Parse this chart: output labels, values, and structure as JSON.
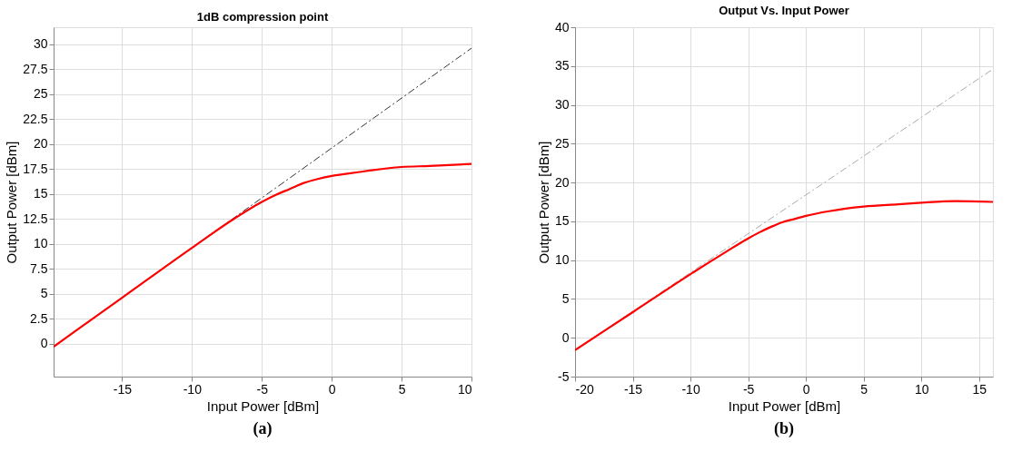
{
  "chart_data": [
    {
      "type": "line",
      "title": "1dB compression point",
      "xlabel": "Input Power [dBm]",
      "ylabel": "Output Power [dBm]",
      "xlim": [
        -19.9,
        10
      ],
      "ylim": [
        -3.3,
        31.7
      ],
      "xticks": [
        -15,
        -10,
        -5,
        0,
        5,
        10
      ],
      "yticks": [
        0,
        2.5,
        5,
        7.5,
        10,
        12.5,
        15,
        17.5,
        20,
        22.5,
        25,
        27.5,
        30
      ],
      "grid": true,
      "annotations": [
        "(a)"
      ],
      "series": [
        {
          "color": "#333333",
          "line_style": "dashed",
          "x": [
            -19.9,
            10
          ],
          "values": [
            -0.3,
            29.6
          ]
        },
        {
          "color": "#ff0000",
          "line_style": "solid",
          "x": [
            -19.9,
            -15,
            -10,
            -7,
            -5,
            -4,
            -3,
            -2,
            -1,
            0,
            1,
            2,
            3,
            5,
            7,
            10
          ],
          "values": [
            -0.3,
            4.6,
            9.6,
            12.5,
            14.2,
            14.9,
            15.5,
            16.1,
            16.5,
            16.8,
            17.0,
            17.2,
            17.4,
            17.7,
            17.8,
            18.0
          ]
        }
      ]
    },
    {
      "type": "line",
      "title": "Output Vs. Input Power",
      "xlabel": "Input Power [dBm]",
      "ylabel": "Output Power [dBm]",
      "xlim": [
        -20,
        16.2
      ],
      "ylim": [
        -5,
        40
      ],
      "xticks": [
        -20,
        -15,
        -10,
        -5,
        0,
        5,
        10,
        15
      ],
      "yticks": [
        -5,
        0,
        5,
        10,
        15,
        20,
        25,
        30,
        35,
        40
      ],
      "grid": true,
      "annotations": [
        "(b)"
      ],
      "series": [
        {
          "color": "#aaaaaa",
          "line_style": "dashed",
          "x": [
            -20,
            16.2
          ],
          "values": [
            -1.6,
            34.6
          ]
        },
        {
          "color": "#ff0000",
          "line_style": "solid",
          "x": [
            -20,
            -15,
            -10,
            -7,
            -5,
            -4,
            -3,
            -2,
            -1,
            0,
            2,
            5,
            8,
            10,
            13,
            16.2
          ],
          "values": [
            -1.6,
            3.3,
            8.2,
            11.0,
            12.8,
            13.6,
            14.3,
            14.9,
            15.3,
            15.7,
            16.3,
            16.9,
            17.2,
            17.4,
            17.6,
            17.5
          ]
        }
      ]
    }
  ]
}
